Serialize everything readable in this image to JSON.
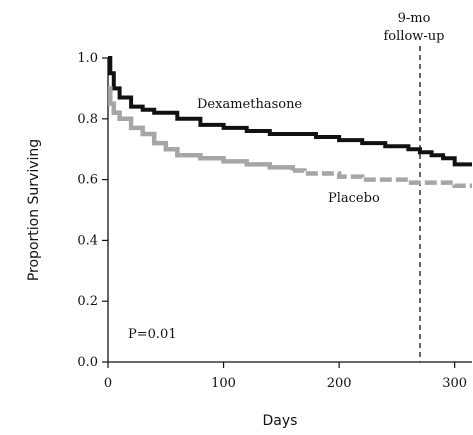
{
  "chart_data": {
    "type": "line",
    "xlabel": "Days",
    "ylabel": "Proportion Surviving",
    "xlim": [
      0,
      315
    ],
    "ylim": [
      0.0,
      1.0
    ],
    "x_ticks": [
      "0",
      "100",
      "200",
      "300"
    ],
    "y_ticks": [
      "0.0",
      "0.2",
      "0.4",
      "0.6",
      "0.8",
      "1.0"
    ],
    "grid": false,
    "series": [
      {
        "name": "Dexamethasone",
        "color": "#111111",
        "line_style": "solid",
        "x": [
          0,
          2,
          5,
          10,
          20,
          30,
          40,
          60,
          80,
          100,
          120,
          140,
          160,
          180,
          200,
          220,
          240,
          260,
          270,
          280,
          290,
          300,
          315
        ],
        "y": [
          1.0,
          0.95,
          0.9,
          0.87,
          0.84,
          0.83,
          0.82,
          0.8,
          0.78,
          0.77,
          0.76,
          0.75,
          0.75,
          0.74,
          0.73,
          0.72,
          0.71,
          0.7,
          0.69,
          0.68,
          0.67,
          0.65,
          0.65
        ]
      },
      {
        "name": "Placebo",
        "color": "#a6a6a6",
        "line_style": "mixed",
        "x": [
          0,
          2,
          5,
          10,
          20,
          30,
          40,
          50,
          60,
          80,
          100,
          120,
          140,
          160,
          170,
          180,
          200,
          220,
          240,
          260,
          280,
          300,
          315
        ],
        "y": [
          0.9,
          0.85,
          0.82,
          0.8,
          0.77,
          0.75,
          0.72,
          0.7,
          0.68,
          0.67,
          0.66,
          0.65,
          0.64,
          0.63,
          0.62,
          0.62,
          0.61,
          0.6,
          0.6,
          0.59,
          0.59,
          0.58,
          0.58
        ]
      }
    ],
    "annotations": {
      "followup_day": 270,
      "followup_label_line1": "9-mo",
      "followup_label_line2": "follow-up",
      "p_value": "P=0.01"
    }
  }
}
